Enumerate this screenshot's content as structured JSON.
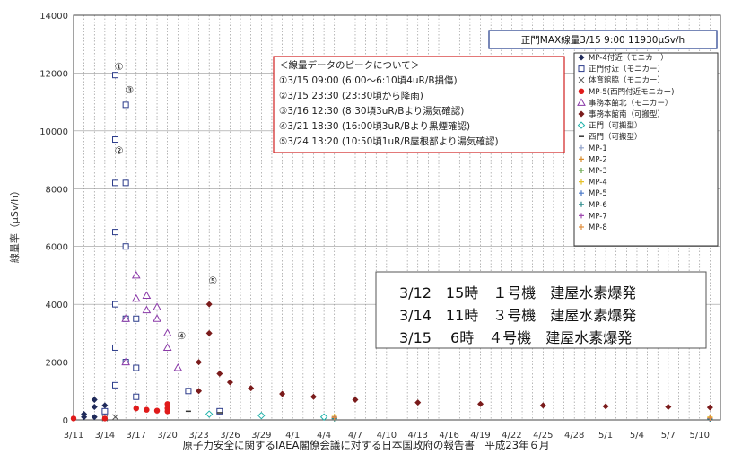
{
  "chart_data": {
    "type": "scatter",
    "title": "",
    "ylabel": "線量率（μSv/h）",
    "source": "原子力安全に関するIAEA閣僚会議に対する日本国政府の報告書　平成23年６月",
    "ylim": [
      0,
      14000
    ],
    "y_ticks": [
      "0",
      "2000",
      "4000",
      "6000",
      "8000",
      "10000",
      "12000",
      "14000"
    ],
    "x_ticks": [
      "3/11",
      "3/14",
      "3/17",
      "3/20",
      "3/23",
      "3/26",
      "3/29",
      "4/1",
      "4/4",
      "4/7",
      "4/10",
      "4/13",
      "4/16",
      "4/19",
      "4/22",
      "4/25",
      "4/28",
      "5/1",
      "5/4",
      "5/7",
      "5/10"
    ],
    "xlim": [
      "3/11",
      "5/12"
    ],
    "grid": true,
    "legend_position": "right",
    "max_note": "正門MAX線量3/15  9:00  11930μSv/h",
    "peak_box": {
      "title": "＜線量データのピークについて＞",
      "lines": [
        "①3/15  09:00  (6:00～6:10頃4uR/B損傷)",
        "②3/15  23:30  (23:30頃から降雨)",
        "③3/16  12:30  (8:30頃3uR/Bより湯気確認)",
        "④3/21  18:30  (16:00頃3uR/Bより黒煙確認)",
        "⑤3/24  13:20  (10:50頃1uR/B屋根部より湯気確認)"
      ]
    },
    "events": [
      "3/12　15時　１号機　建屋水素爆発",
      "3/14　11時　３号機　建屋水素爆発",
      "3/15　 6時　４号機　建屋水素爆発"
    ],
    "peak_markers": [
      {
        "label": "①",
        "x": "3/15",
        "y": 12100
      },
      {
        "label": "②",
        "x": "3/15",
        "y": 9200
      },
      {
        "label": "③",
        "x": "3/16",
        "y": 11300
      },
      {
        "label": "④",
        "x": "3/21",
        "y": 2800
      },
      {
        "label": "⑤",
        "x": "3/24",
        "y": 4700
      }
    ],
    "series": [
      {
        "name": "MP-4付近（モニカー）",
        "marker": "◆",
        "color": "#1f2a5a",
        "points": [
          [
            "3/12",
            200
          ],
          [
            "3/13",
            450
          ],
          [
            "3/13",
            700
          ],
          [
            "3/14",
            500
          ],
          [
            "3/14",
            300
          ],
          [
            "3/12",
            100
          ],
          [
            "3/13",
            100
          ]
        ]
      },
      {
        "name": "正門付近（モニカー）",
        "marker": "□",
        "color": "#2b3b8a",
        "points": [
          [
            "3/15",
            11930
          ],
          [
            "3/15",
            8200
          ],
          [
            "3/15",
            6500
          ],
          [
            "3/15",
            4000
          ],
          [
            "3/15",
            2500
          ],
          [
            "3/15",
            1200
          ],
          [
            "3/16",
            10900
          ],
          [
            "3/16",
            8200
          ],
          [
            "3/16",
            6000
          ],
          [
            "3/16",
            3500
          ],
          [
            "3/16",
            2000
          ],
          [
            "3/17",
            3500
          ],
          [
            "3/17",
            1800
          ],
          [
            "3/17",
            800
          ],
          [
            "3/22",
            1000
          ],
          [
            "3/25",
            300
          ],
          [
            "3/14",
            300
          ],
          [
            "3/15",
            9700
          ]
        ]
      },
      {
        "name": "体育館脇（モニカー）",
        "marker": "×",
        "color": "#555555",
        "points": [
          [
            "3/14",
            50
          ],
          [
            "3/15",
            100
          ]
        ]
      },
      {
        "name": "MP-5(西門付近モニカー)",
        "marker": "●",
        "color": "#e01b1b",
        "points": [
          [
            "3/11",
            50
          ],
          [
            "3/14",
            50
          ],
          [
            "3/17",
            400
          ],
          [
            "3/18",
            350
          ],
          [
            "3/19",
            320
          ],
          [
            "3/20",
            300
          ],
          [
            "3/20",
            550
          ],
          [
            "3/20",
            400
          ]
        ]
      },
      {
        "name": "事務本館北（モニカー）",
        "marker": "△",
        "color": "#8a3aa8",
        "points": [
          [
            "3/16",
            3500
          ],
          [
            "3/17",
            4200
          ],
          [
            "3/17",
            5000
          ],
          [
            "3/18",
            3800
          ],
          [
            "3/18",
            4300
          ],
          [
            "3/19",
            3500
          ],
          [
            "3/19",
            3900
          ],
          [
            "3/20",
            3000
          ],
          [
            "3/20",
            2500
          ],
          [
            "3/21",
            1800
          ],
          [
            "3/16",
            2000
          ]
        ]
      },
      {
        "name": "事務本館南（可搬型）",
        "marker": "◆",
        "color": "#7a1b1b",
        "points": [
          [
            "3/23",
            1000
          ],
          [
            "3/23",
            2000
          ],
          [
            "3/24",
            4000
          ],
          [
            "3/24",
            3000
          ],
          [
            "3/25",
            1600
          ],
          [
            "3/26",
            1300
          ],
          [
            "3/28",
            1100
          ],
          [
            "3/31",
            900
          ],
          [
            "4/3",
            800
          ],
          [
            "4/7",
            700
          ],
          [
            "4/13",
            600
          ],
          [
            "4/19",
            550
          ],
          [
            "4/25",
            500
          ],
          [
            "5/1",
            470
          ],
          [
            "5/7",
            450
          ],
          [
            "5/11",
            430
          ]
        ]
      },
      {
        "name": "正門（可搬型）",
        "marker": "◇",
        "color": "#20b2aa",
        "points": [
          [
            "3/24",
            200
          ],
          [
            "3/29",
            150
          ],
          [
            "4/4",
            100
          ]
        ]
      },
      {
        "name": "西門（可搬型）",
        "marker": "‐",
        "color": "#333333",
        "points": [
          [
            "3/22",
            300
          ],
          [
            "3/25",
            250
          ]
        ]
      },
      {
        "name": "MP-1",
        "marker": "+",
        "color": "#8fa0c8",
        "points": [
          [
            "4/5",
            80
          ],
          [
            "5/11",
            40
          ]
        ]
      },
      {
        "name": "MP-2",
        "marker": "+",
        "color": "#d98c2b",
        "points": [
          [
            "4/5",
            60
          ],
          [
            "5/11",
            50
          ]
        ]
      },
      {
        "name": "MP-3",
        "marker": "+",
        "color": "#6aa84f",
        "points": [
          [
            "4/5",
            50
          ],
          [
            "5/11",
            40
          ]
        ]
      },
      {
        "name": "MP-4",
        "marker": "+",
        "color": "#e6c229",
        "points": [
          [
            "4/5",
            120
          ],
          [
            "5/11",
            100
          ]
        ]
      },
      {
        "name": "MP-5",
        "marker": "+",
        "color": "#4a78c8",
        "points": [
          [
            "4/5",
            70
          ],
          [
            "5/11",
            50
          ]
        ]
      },
      {
        "name": "MP-6",
        "marker": "+",
        "color": "#2a8a8a",
        "points": [
          [
            "4/5",
            40
          ],
          [
            "5/11",
            30
          ]
        ]
      },
      {
        "name": "MP-7",
        "marker": "+",
        "color": "#a04ab0",
        "points": [
          [
            "4/5",
            90
          ],
          [
            "5/11",
            60
          ]
        ]
      },
      {
        "name": "MP-8",
        "marker": "+",
        "color": "#e09040",
        "points": [
          [
            "4/5",
            80
          ],
          [
            "5/11",
            70
          ]
        ]
      }
    ]
  }
}
